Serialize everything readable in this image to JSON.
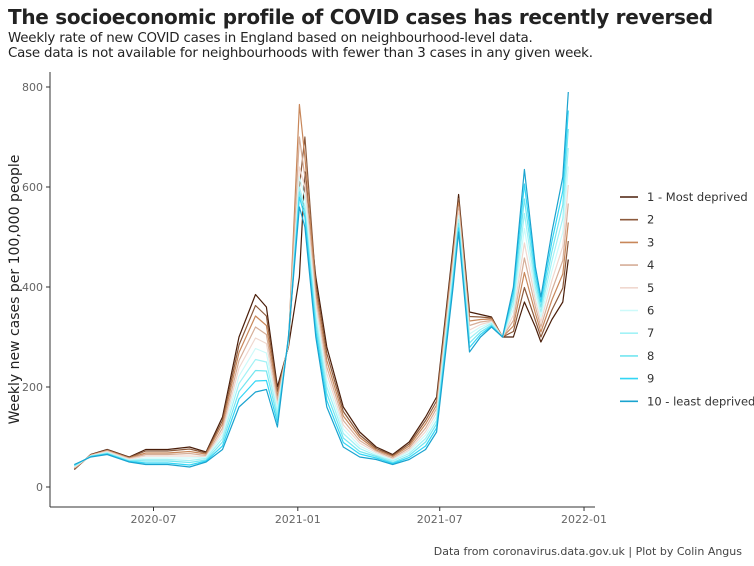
{
  "title": "The socioeconomic profile of COVID cases has recently reversed",
  "subtitle_lines": [
    "Weekly rate of new COVID cases in England based on neighbourhood-level data.",
    "Case data is not available for neighbourhoods with fewer than 3 cases in any given week."
  ],
  "caption": "Data from coronavirus.data.gov.uk | Plot by Colin Angus",
  "chart_data": {
    "type": "line",
    "title": "The socioeconomic profile of COVID cases has recently reversed",
    "xlabel": "",
    "ylabel": "Weekly new cases per 100,000 people",
    "xlim": [
      "2020-02-20",
      "2022-01-15"
    ],
    "ylim": [
      -40,
      830
    ],
    "x_ticks": [
      "2020-07",
      "2021-01",
      "2021-07",
      "2022-01"
    ],
    "x_tick_dates": [
      "2020-07-01",
      "2021-01-01",
      "2021-07-01",
      "2022-01-01"
    ],
    "y_ticks": [
      0,
      200,
      400,
      600,
      800
    ],
    "grid": false,
    "legend_position": "right",
    "x": [
      "2020-03-22",
      "2020-04-12",
      "2020-05-03",
      "2020-05-31",
      "2020-06-21",
      "2020-07-19",
      "2020-08-16",
      "2020-09-06",
      "2020-09-27",
      "2020-10-18",
      "2020-11-08",
      "2020-11-22",
      "2020-12-06",
      "2020-12-20",
      "2021-01-03",
      "2021-01-10",
      "2021-01-24",
      "2021-02-07",
      "2021-02-28",
      "2021-03-21",
      "2021-04-11",
      "2021-05-02",
      "2021-05-23",
      "2021-06-13",
      "2021-06-27",
      "2021-07-18",
      "2021-07-25",
      "2021-08-08",
      "2021-08-22",
      "2021-09-05",
      "2021-09-19",
      "2021-10-03",
      "2021-10-17",
      "2021-10-31",
      "2021-11-07",
      "2021-11-21",
      "2021-12-05",
      "2021-12-12"
    ],
    "series": [
      {
        "name": "1 - Most deprived",
        "color": "#4a1e0a",
        "values": [
          35,
          65,
          75,
          60,
          75,
          75,
          80,
          70,
          140,
          300,
          385,
          360,
          200,
          280,
          420,
          630,
          420,
          280,
          160,
          110,
          80,
          65,
          90,
          140,
          180,
          480,
          585,
          350,
          345,
          340,
          300,
          300,
          370,
          320,
          290,
          335,
          370,
          455
        ]
      },
      {
        "name": "2",
        "color": "#8c5a3c",
        "values": [
          36,
          64,
          74,
          59,
          72,
          72,
          76,
          68,
          133,
          284,
          363,
          342,
          191,
          282,
          600,
          700,
          407,
          267,
          151,
          104,
          77,
          63,
          86,
          133,
          172,
          471,
          577,
          341,
          340,
          338,
          300,
          311,
          399,
          333,
          300,
          354,
          398,
          492
        ]
      },
      {
        "name": "3",
        "color": "#c8875a",
        "values": [
          37,
          64,
          73,
          58,
          68,
          68,
          71,
          66,
          126,
          269,
          342,
          323,
          182,
          284,
          765,
          660,
          393,
          253,
          142,
          99,
          74,
          61,
          82,
          126,
          164,
          462,
          568,
          332,
          335,
          336,
          300,
          322,
          429,
          347,
          310,
          374,
          426,
          529
        ]
      },
      {
        "name": "4",
        "color": "#d6ae98",
        "values": [
          38,
          63,
          72,
          57,
          65,
          65,
          67,
          63,
          118,
          253,
          320,
          305,
          173,
          287,
          700,
          620,
          380,
          240,
          133,
          93,
          72,
          58,
          78,
          118,
          157,
          453,
          560,
          323,
          330,
          333,
          300,
          333,
          458,
          360,
          320,
          393,
          453,
          567
        ]
      },
      {
        "name": "5",
        "color": "#f0d8cf",
        "values": [
          39,
          63,
          71,
          56,
          62,
          62,
          62,
          61,
          111,
          238,
          298,
          287,
          164,
          289,
          640,
          600,
          367,
          227,
          124,
          88,
          69,
          56,
          74,
          111,
          149,
          444,
          552,
          314,
          325,
          331,
          300,
          344,
          488,
          373,
          330,
          413,
          481,
          604
        ]
      },
      {
        "name": "6",
        "color": "#cdfafa",
        "values": [
          41,
          62,
          69,
          54,
          58,
          58,
          58,
          59,
          104,
          222,
          277,
          268,
          156,
          291,
          620,
          580,
          353,
          213,
          116,
          82,
          66,
          54,
          71,
          104,
          141,
          436,
          543,
          306,
          320,
          329,
          300,
          356,
          517,
          387,
          340,
          432,
          509,
          641
        ]
      },
      {
        "name": "7",
        "color": "#a2f2f6",
        "values": [
          42,
          62,
          68,
          53,
          55,
          55,
          53,
          57,
          97,
          207,
          255,
          250,
          147,
          293,
          600,
          560,
          340,
          200,
          107,
          77,
          63,
          52,
          67,
          97,
          133,
          427,
          535,
          297,
          315,
          327,
          300,
          367,
          547,
          400,
          350,
          452,
          537,
          678
        ]
      },
      {
        "name": "8",
        "color": "#74e6f0",
        "values": [
          43,
          61,
          67,
          52,
          52,
          52,
          49,
          54,
          90,
          191,
          233,
          232,
          138,
          296,
          590,
          550,
          327,
          187,
          98,
          71,
          61,
          49,
          63,
          90,
          126,
          418,
          527,
          288,
          310,
          324,
          300,
          378,
          576,
          413,
          360,
          471,
          564,
          716
        ]
      },
      {
        "name": "9",
        "color": "#33d6f5",
        "values": [
          44,
          61,
          66,
          51,
          48,
          48,
          44,
          52,
          82,
          176,
          212,
          213,
          129,
          298,
          580,
          540,
          313,
          173,
          89,
          66,
          58,
          47,
          59,
          82,
          118,
          409,
          518,
          279,
          305,
          322,
          300,
          389,
          606,
          427,
          370,
          491,
          592,
          753
        ]
      },
      {
        "name": "10 - least deprived",
        "color": "#1aa3cf",
        "values": [
          45,
          60,
          65,
          50,
          45,
          45,
          40,
          50,
          75,
          160,
          190,
          195,
          120,
          300,
          560,
          520,
          300,
          160,
          80,
          60,
          55,
          45,
          55,
          75,
          110,
          400,
          510,
          270,
          300,
          320,
          300,
          400,
          635,
          440,
          380,
          510,
          620,
          790
        ]
      }
    ]
  }
}
